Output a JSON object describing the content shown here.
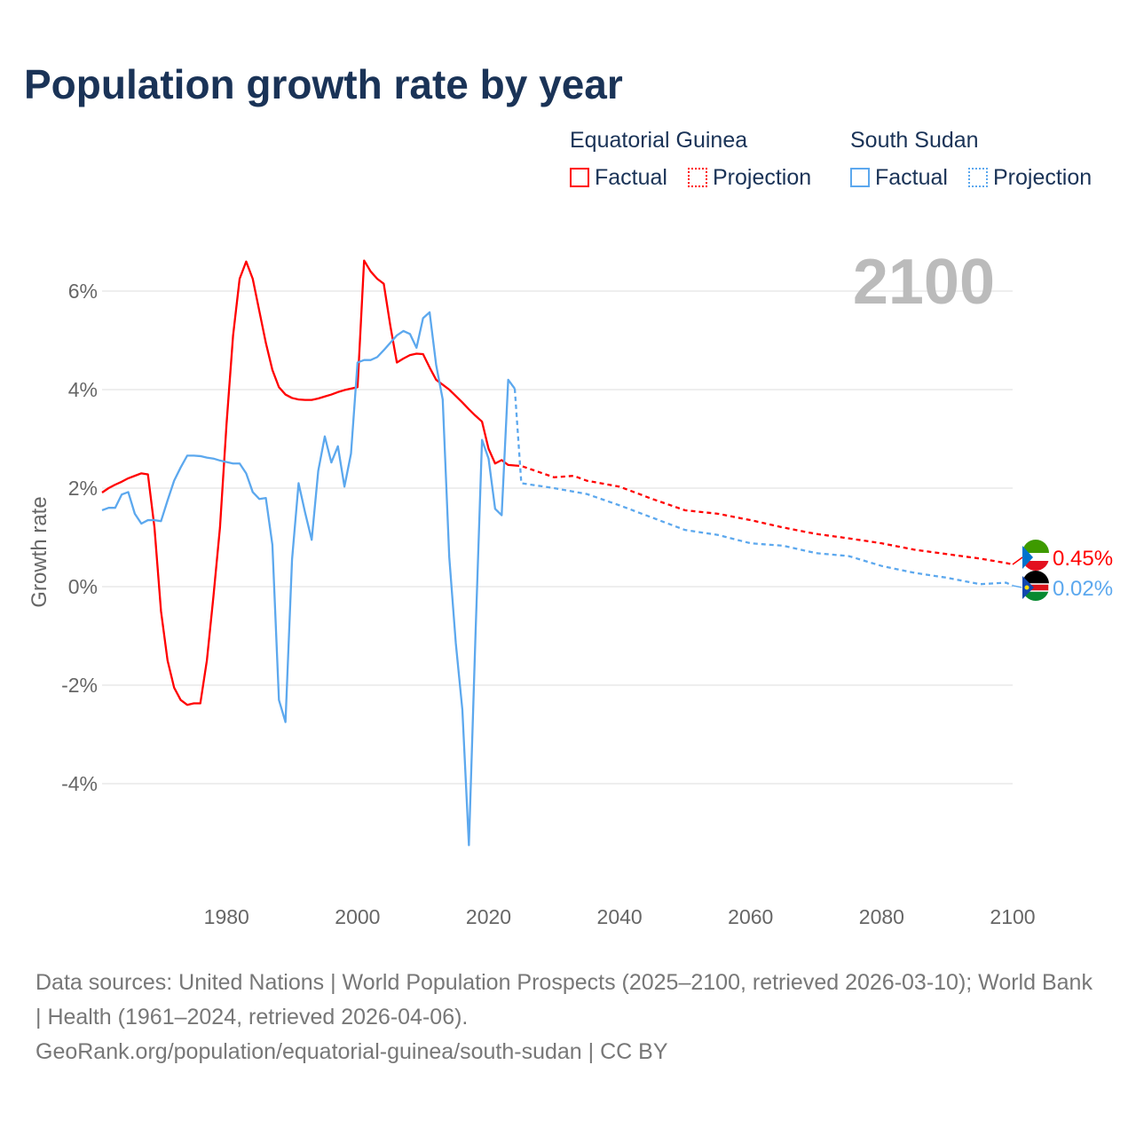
{
  "title": "Population growth rate by year",
  "legend": {
    "groups": [
      {
        "name": "Equatorial Guinea",
        "color": "#ff0000",
        "factual": "Factual",
        "projection": "Projection"
      },
      {
        "name": "South Sudan",
        "color": "#5ca8ee",
        "factual": "Factual",
        "projection": "Projection"
      }
    ]
  },
  "source": {
    "line1": "Data sources: United Nations | World Population Prospects (2025–2100, retrieved 2026-03-10); World Bank | Health (1961–2024, retrieved 2026-04-06).",
    "line2": "GeoRank.org/population/equatorial-guinea/south-sudan | CC BY"
  },
  "chart_data": {
    "type": "line",
    "title": "Population growth rate by year",
    "ylabel": "Growth rate",
    "xlabel": "",
    "current_year_label": "2100",
    "xlim": [
      1961,
      2100
    ],
    "ylim": [
      -5.5,
      7
    ],
    "xticks": [
      1980,
      2000,
      2020,
      2040,
      2060,
      2080,
      2100
    ],
    "yticks": [
      {
        "v": 6,
        "label": "6%"
      },
      {
        "v": 4,
        "label": "4%"
      },
      {
        "v": 2,
        "label": "2%"
      },
      {
        "v": 0,
        "label": "0%"
      },
      {
        "v": -2,
        "label": "-2%"
      },
      {
        "v": -4,
        "label": "-4%"
      }
    ],
    "grid": true,
    "series": [
      {
        "name": "Equatorial Guinea",
        "color": "#ff0000",
        "end_label": "0.45%",
        "factual": {
          "x0": 1961,
          "values": [
            1.91,
            2.0,
            2.07,
            2.13,
            2.2,
            2.25,
            2.3,
            2.28,
            1.2,
            -0.5,
            -1.5,
            -2.05,
            -2.3,
            -2.4,
            -2.37,
            -2.37,
            -1.5,
            -0.2,
            1.2,
            3.3,
            5.1,
            6.25,
            6.6,
            6.25,
            5.6,
            4.95,
            4.4,
            4.05,
            3.9,
            3.83,
            3.8,
            3.79,
            3.79,
            3.82,
            3.86,
            3.9,
            3.95,
            3.99,
            4.02,
            4.05,
            6.62,
            6.4,
            6.25,
            6.15,
            5.3,
            4.55,
            4.63,
            4.7,
            4.73,
            4.72,
            4.45,
            4.2,
            4.1,
            4.0,
            3.87,
            3.74,
            3.6,
            3.47,
            3.35,
            2.8,
            2.5,
            2.57,
            2.47,
            2.46
          ]
        },
        "projection": {
          "x": [
            2024,
            2025,
            2030,
            2033,
            2035,
            2040,
            2045,
            2050,
            2055,
            2060,
            2065,
            2070,
            2075,
            2080,
            2085,
            2090,
            2095,
            2099,
            2100
          ],
          "values": [
            2.46,
            2.45,
            2.22,
            2.25,
            2.15,
            2.03,
            1.78,
            1.55,
            1.48,
            1.35,
            1.2,
            1.07,
            0.98,
            0.88,
            0.75,
            0.66,
            0.57,
            0.48,
            0.45
          ]
        }
      },
      {
        "name": "South Sudan",
        "color": "#5ca8ee",
        "end_label": "0.02%",
        "factual": {
          "x0": 1961,
          "values": [
            1.55,
            1.6,
            1.6,
            1.87,
            1.92,
            1.48,
            1.28,
            1.35,
            1.35,
            1.33,
            1.75,
            2.15,
            2.42,
            2.66,
            2.66,
            2.65,
            2.62,
            2.6,
            2.56,
            2.53,
            2.5,
            2.5,
            2.3,
            1.92,
            1.78,
            1.8,
            0.85,
            -2.3,
            -2.75,
            0.55,
            2.1,
            1.5,
            0.95,
            2.35,
            3.05,
            2.52,
            2.85,
            2.03,
            2.7,
            4.55,
            4.6,
            4.6,
            4.66,
            4.8,
            4.95,
            5.1,
            5.19,
            5.13,
            4.85,
            5.45,
            5.57,
            4.5,
            3.8,
            0.6,
            -1.15,
            -2.5,
            -5.25,
            -1.0,
            2.98,
            2.6,
            1.58,
            1.45,
            4.2,
            4.02
          ]
        },
        "projection": {
          "x": [
            2024,
            2025,
            2030,
            2035,
            2040,
            2045,
            2050,
            2055,
            2060,
            2065,
            2070,
            2075,
            2080,
            2085,
            2090,
            2095,
            2099,
            2100
          ],
          "values": [
            4.02,
            2.1,
            2.0,
            1.88,
            1.65,
            1.4,
            1.15,
            1.05,
            0.88,
            0.83,
            0.68,
            0.62,
            0.42,
            0.28,
            0.18,
            0.05,
            0.08,
            0.02
          ]
        }
      }
    ]
  }
}
